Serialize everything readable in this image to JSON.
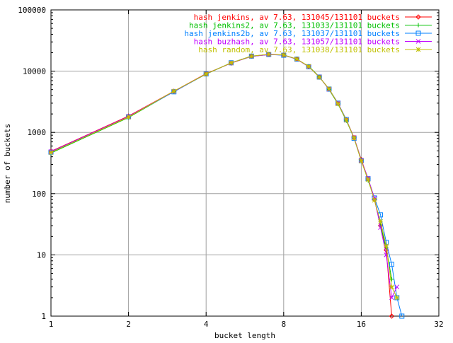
{
  "chart_data": {
    "type": "line",
    "xlabel": "bucket length",
    "ylabel": "number of buckets",
    "x_scale": "log2",
    "y_scale": "log10",
    "xlim": [
      1,
      32
    ],
    "ylim": [
      1,
      100000
    ],
    "x_ticks": [
      1,
      2,
      4,
      8,
      16,
      32
    ],
    "x_tick_labels": [
      "1",
      "2",
      "4",
      "8",
      "16",
      "32"
    ],
    "y_ticks": [
      1,
      10,
      100,
      1000,
      10000,
      100000
    ],
    "y_tick_labels": [
      "1",
      "10",
      "100",
      "1000",
      "10000",
      "100000"
    ],
    "grid": true,
    "legend_position": "top-right",
    "series": [
      {
        "name": "hash jenkins, av 7.63, 131045/131101 buckets",
        "color": "#ff0000",
        "marker": "diamond",
        "x": [
          1,
          2,
          3,
          4,
          5,
          6,
          7,
          8,
          9,
          10,
          11,
          12,
          13,
          14,
          15,
          16,
          17,
          18,
          19,
          20,
          21
        ],
        "y": [
          490,
          1850,
          4700,
          9100,
          13500,
          17500,
          18800,
          18300,
          15800,
          11900,
          8000,
          5100,
          2950,
          1600,
          820,
          360,
          175,
          80,
          30,
          12,
          1
        ]
      },
      {
        "name": "hash jenkins2, av 7.63, 131033/131101 buckets",
        "color": "#00c000",
        "marker": "plus",
        "x": [
          1,
          2,
          3,
          4,
          5,
          6,
          7,
          8,
          9,
          10,
          11,
          12,
          13,
          14,
          15,
          16,
          17,
          18,
          19,
          20,
          21
        ],
        "y": [
          460,
          1750,
          4650,
          8950,
          13600,
          17400,
          18600,
          18500,
          15600,
          12000,
          8100,
          5000,
          2900,
          1550,
          810,
          355,
          165,
          82,
          30,
          13,
          4
        ]
      },
      {
        "name": "hash jenkins2b, av 7.63, 131037/131101 buckets",
        "color": "#0080ff",
        "marker": "square",
        "x": [
          1,
          2,
          3,
          4,
          5,
          6,
          7,
          8,
          9,
          10,
          11,
          12,
          13,
          14,
          15,
          16,
          17,
          18,
          19,
          20,
          21,
          22,
          23
        ],
        "y": [
          475,
          1800,
          4600,
          9000,
          13700,
          17600,
          18700,
          18200,
          15700,
          11800,
          8000,
          5100,
          3000,
          1620,
          800,
          345,
          175,
          85,
          45,
          16,
          7,
          2,
          1
        ]
      },
      {
        "name": "hash buzhash, av 7.63, 131057/131101 buckets",
        "color": "#c000ff",
        "marker": "cross",
        "x": [
          1,
          2,
          3,
          4,
          5,
          6,
          7,
          8,
          9,
          10,
          11,
          12,
          13,
          14,
          15,
          16,
          17,
          18,
          19,
          20,
          21,
          22
        ],
        "y": [
          485,
          1820,
          4680,
          9050,
          13550,
          17450,
          18650,
          18350,
          15650,
          11850,
          8050,
          5050,
          2980,
          1580,
          830,
          350,
          178,
          84,
          28,
          10,
          2,
          3
        ]
      },
      {
        "name": "hash random, av 7.63, 131038/131101 buckets",
        "color": "#c0c000",
        "marker": "asterisk",
        "x": [
          1,
          2,
          3,
          4,
          5,
          6,
          7,
          8,
          9,
          10,
          11,
          12,
          13,
          14,
          15,
          16,
          17,
          18,
          19,
          20,
          21,
          22
        ],
        "y": [
          470,
          1780,
          4720,
          8980,
          13650,
          17550,
          18900,
          18400,
          15750,
          11950,
          7950,
          5150,
          2920,
          1590,
          815,
          340,
          170,
          78,
          35,
          14,
          3,
          2
        ]
      }
    ]
  }
}
